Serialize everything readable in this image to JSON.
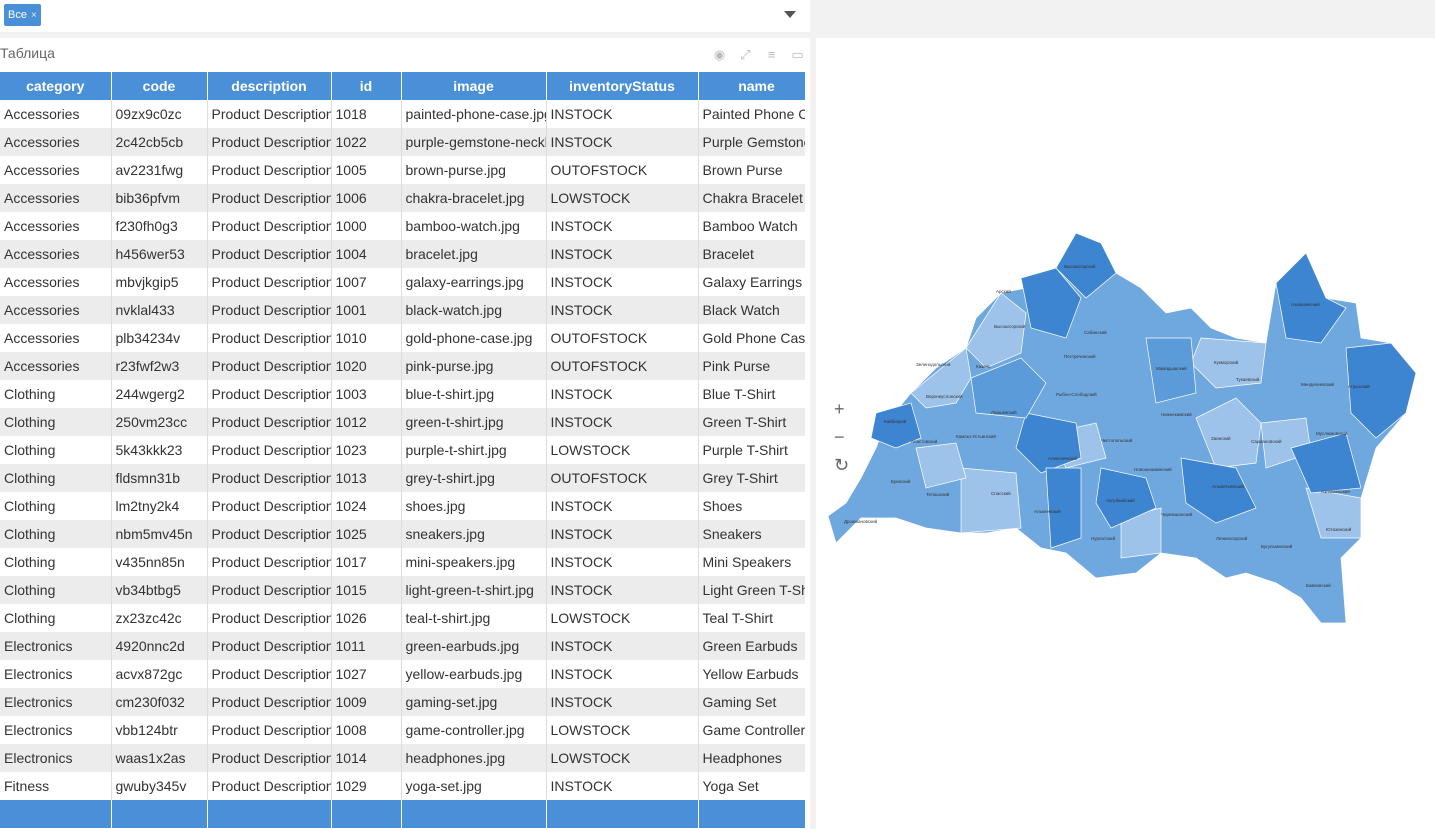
{
  "filter": {
    "tag": "Все"
  },
  "panel": {
    "title": "Таблица"
  },
  "table": {
    "columns": [
      "category",
      "code",
      "description",
      "id",
      "image",
      "inventoryStatus",
      "name"
    ],
    "rows": [
      [
        "Accessories",
        "09zx9c0zc",
        "Product Description",
        "1018",
        "painted-phone-case.jpg",
        "INSTOCK",
        "Painted Phone Case"
      ],
      [
        "Accessories",
        "2c42cb5cb",
        "Product Description",
        "1022",
        "purple-gemstone-necklace.jpg",
        "INSTOCK",
        "Purple Gemstone Necklace"
      ],
      [
        "Accessories",
        "av2231fwg",
        "Product Description",
        "1005",
        "brown-purse.jpg",
        "OUTOFSTOCK",
        "Brown Purse"
      ],
      [
        "Accessories",
        "bib36pfvm",
        "Product Description",
        "1006",
        "chakra-bracelet.jpg",
        "LOWSTOCK",
        "Chakra Bracelet"
      ],
      [
        "Accessories",
        "f230fh0g3",
        "Product Description",
        "1000",
        "bamboo-watch.jpg",
        "INSTOCK",
        "Bamboo Watch"
      ],
      [
        "Accessories",
        "h456wer53",
        "Product Description",
        "1004",
        "bracelet.jpg",
        "INSTOCK",
        "Bracelet"
      ],
      [
        "Accessories",
        "mbvjkgip5",
        "Product Description",
        "1007",
        "galaxy-earrings.jpg",
        "INSTOCK",
        "Galaxy Earrings"
      ],
      [
        "Accessories",
        "nvklal433",
        "Product Description",
        "1001",
        "black-watch.jpg",
        "INSTOCK",
        "Black Watch"
      ],
      [
        "Accessories",
        "plb34234v",
        "Product Description",
        "1010",
        "gold-phone-case.jpg",
        "OUTOFSTOCK",
        "Gold Phone Case"
      ],
      [
        "Accessories",
        "r23fwf2w3",
        "Product Description",
        "1020",
        "pink-purse.jpg",
        "OUTOFSTOCK",
        "Pink Purse"
      ],
      [
        "Clothing",
        "244wgerg2",
        "Product Description",
        "1003",
        "blue-t-shirt.jpg",
        "INSTOCK",
        "Blue T-Shirt"
      ],
      [
        "Clothing",
        "250vm23cc",
        "Product Description",
        "1012",
        "green-t-shirt.jpg",
        "INSTOCK",
        "Green T-Shirt"
      ],
      [
        "Clothing",
        "5k43kkk23",
        "Product Description",
        "1023",
        "purple-t-shirt.jpg",
        "LOWSTOCK",
        "Purple T-Shirt"
      ],
      [
        "Clothing",
        "fldsmn31b",
        "Product Description",
        "1013",
        "grey-t-shirt.jpg",
        "OUTOFSTOCK",
        "Grey T-Shirt"
      ],
      [
        "Clothing",
        "lm2tny2k4",
        "Product Description",
        "1024",
        "shoes.jpg",
        "INSTOCK",
        "Shoes"
      ],
      [
        "Clothing",
        "nbm5mv45n",
        "Product Description",
        "1025",
        "sneakers.jpg",
        "INSTOCK",
        "Sneakers"
      ],
      [
        "Clothing",
        "v435nn85n",
        "Product Description",
        "1017",
        "mini-speakers.jpg",
        "INSTOCK",
        "Mini Speakers"
      ],
      [
        "Clothing",
        "vb34btbg5",
        "Product Description",
        "1015",
        "light-green-t-shirt.jpg",
        "INSTOCK",
        "Light Green T-Shirt"
      ],
      [
        "Clothing",
        "zx23zc42c",
        "Product Description",
        "1026",
        "teal-t-shirt.jpg",
        "LOWSTOCK",
        "Teal T-Shirt"
      ],
      [
        "Electronics",
        "4920nnc2d",
        "Product Description",
        "1011",
        "green-earbuds.jpg",
        "INSTOCK",
        "Green Earbuds"
      ],
      [
        "Electronics",
        "acvx872gc",
        "Product Description",
        "1027",
        "yellow-earbuds.jpg",
        "INSTOCK",
        "Yellow Earbuds"
      ],
      [
        "Electronics",
        "cm230f032",
        "Product Description",
        "1009",
        "gaming-set.jpg",
        "INSTOCK",
        "Gaming Set"
      ],
      [
        "Electronics",
        "vbb124btr",
        "Product Description",
        "1008",
        "game-controller.jpg",
        "LOWSTOCK",
        "Game Controller"
      ],
      [
        "Electronics",
        "waas1x2as",
        "Product Description",
        "1014",
        "headphones.jpg",
        "LOWSTOCK",
        "Headphones"
      ],
      [
        "Fitness",
        "gwuby345v",
        "Product Description",
        "1029",
        "yoga-set.jpg",
        "INSTOCK",
        "Yoga Set"
      ]
    ]
  },
  "map": {
    "controls": {
      "zoom_in": "+",
      "zoom_out": "−",
      "reset": "↻"
    },
    "colors": {
      "light": "#9dc3ea",
      "mid": "#6fa8df",
      "base": "#5b9bd9",
      "dark": "#3e85d1"
    }
  }
}
